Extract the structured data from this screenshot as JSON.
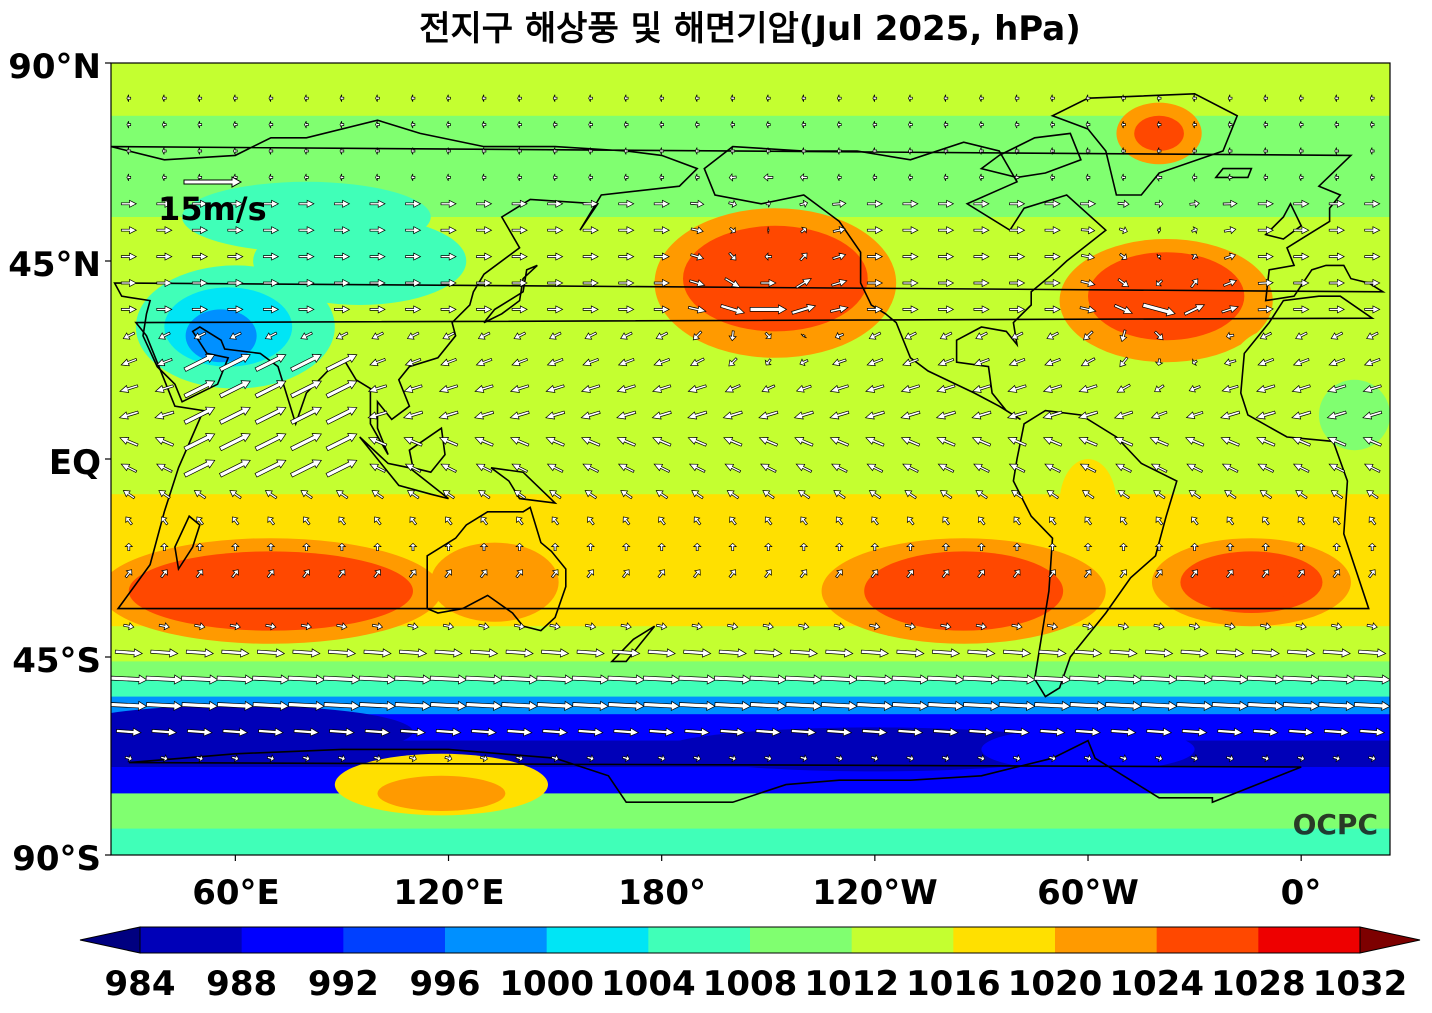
{
  "title": "전지구 해상풍 및 해면기압(Jul 2025, hPa)",
  "axes": {
    "lat_labels": [
      "90°N",
      "45°N",
      "EQ",
      "45°S",
      "90°S"
    ],
    "lon_labels": [
      "60°E",
      "120°E",
      "180°",
      "120°W",
      "60°W",
      "0°"
    ]
  },
  "wind_reference": {
    "label": "15m/s",
    "speed": 15,
    "unit": "m/s"
  },
  "watermark": "OCPC",
  "colorbar": {
    "levels": [
      "984",
      "988",
      "992",
      "996",
      "1000",
      "1004",
      "1008",
      "1012",
      "1016",
      "1020",
      "1024",
      "1028",
      "1032"
    ],
    "colors": [
      "#000080",
      "#0000b8",
      "#0000ff",
      "#0040ff",
      "#0090ff",
      "#00e5f5",
      "#40ffb8",
      "#80ff70",
      "#c4ff30",
      "#ffe000",
      "#ff9a00",
      "#ff4800",
      "#ee0000",
      "#7d0000"
    ],
    "extend": "both"
  },
  "chart_data": {
    "type": "heatmap",
    "title": "전지구 해상풍 및 해면기압(Jul 2025, hPa)",
    "variable": "sea level pressure (hPa) with surface wind vectors",
    "month": "Jul 2025",
    "lon_range": [
      25,
      385
    ],
    "lat_range": [
      -90,
      90
    ],
    "value_range": [
      984,
      1032
    ],
    "pressure_centers": [
      {
        "type": "high",
        "lon": -150,
        "lat": 40,
        "value": 1026
      },
      {
        "type": "high",
        "lon": -38,
        "lat": 36,
        "value": 1025
      },
      {
        "type": "high",
        "lon": 70,
        "lat": -30,
        "value": 1026
      },
      {
        "type": "high",
        "lon": -95,
        "lat": -30,
        "value": 1025
      },
      {
        "type": "high",
        "lon": -15,
        "lat": -27,
        "value": 1025
      },
      {
        "type": "high",
        "lon": 132,
        "lat": -28,
        "value": 1021
      },
      {
        "type": "high",
        "lon": -40,
        "lat": 75,
        "value": 1020
      },
      {
        "type": "high",
        "lon": 120,
        "lat": -75,
        "value": 1020
      },
      {
        "type": "low",
        "lon": 60,
        "lat": 30,
        "value": 996
      },
      {
        "type": "low",
        "lon": 80,
        "lat": -62,
        "value": 984
      },
      {
        "type": "low",
        "lon": -120,
        "lat": -65,
        "value": 984
      }
    ]
  }
}
